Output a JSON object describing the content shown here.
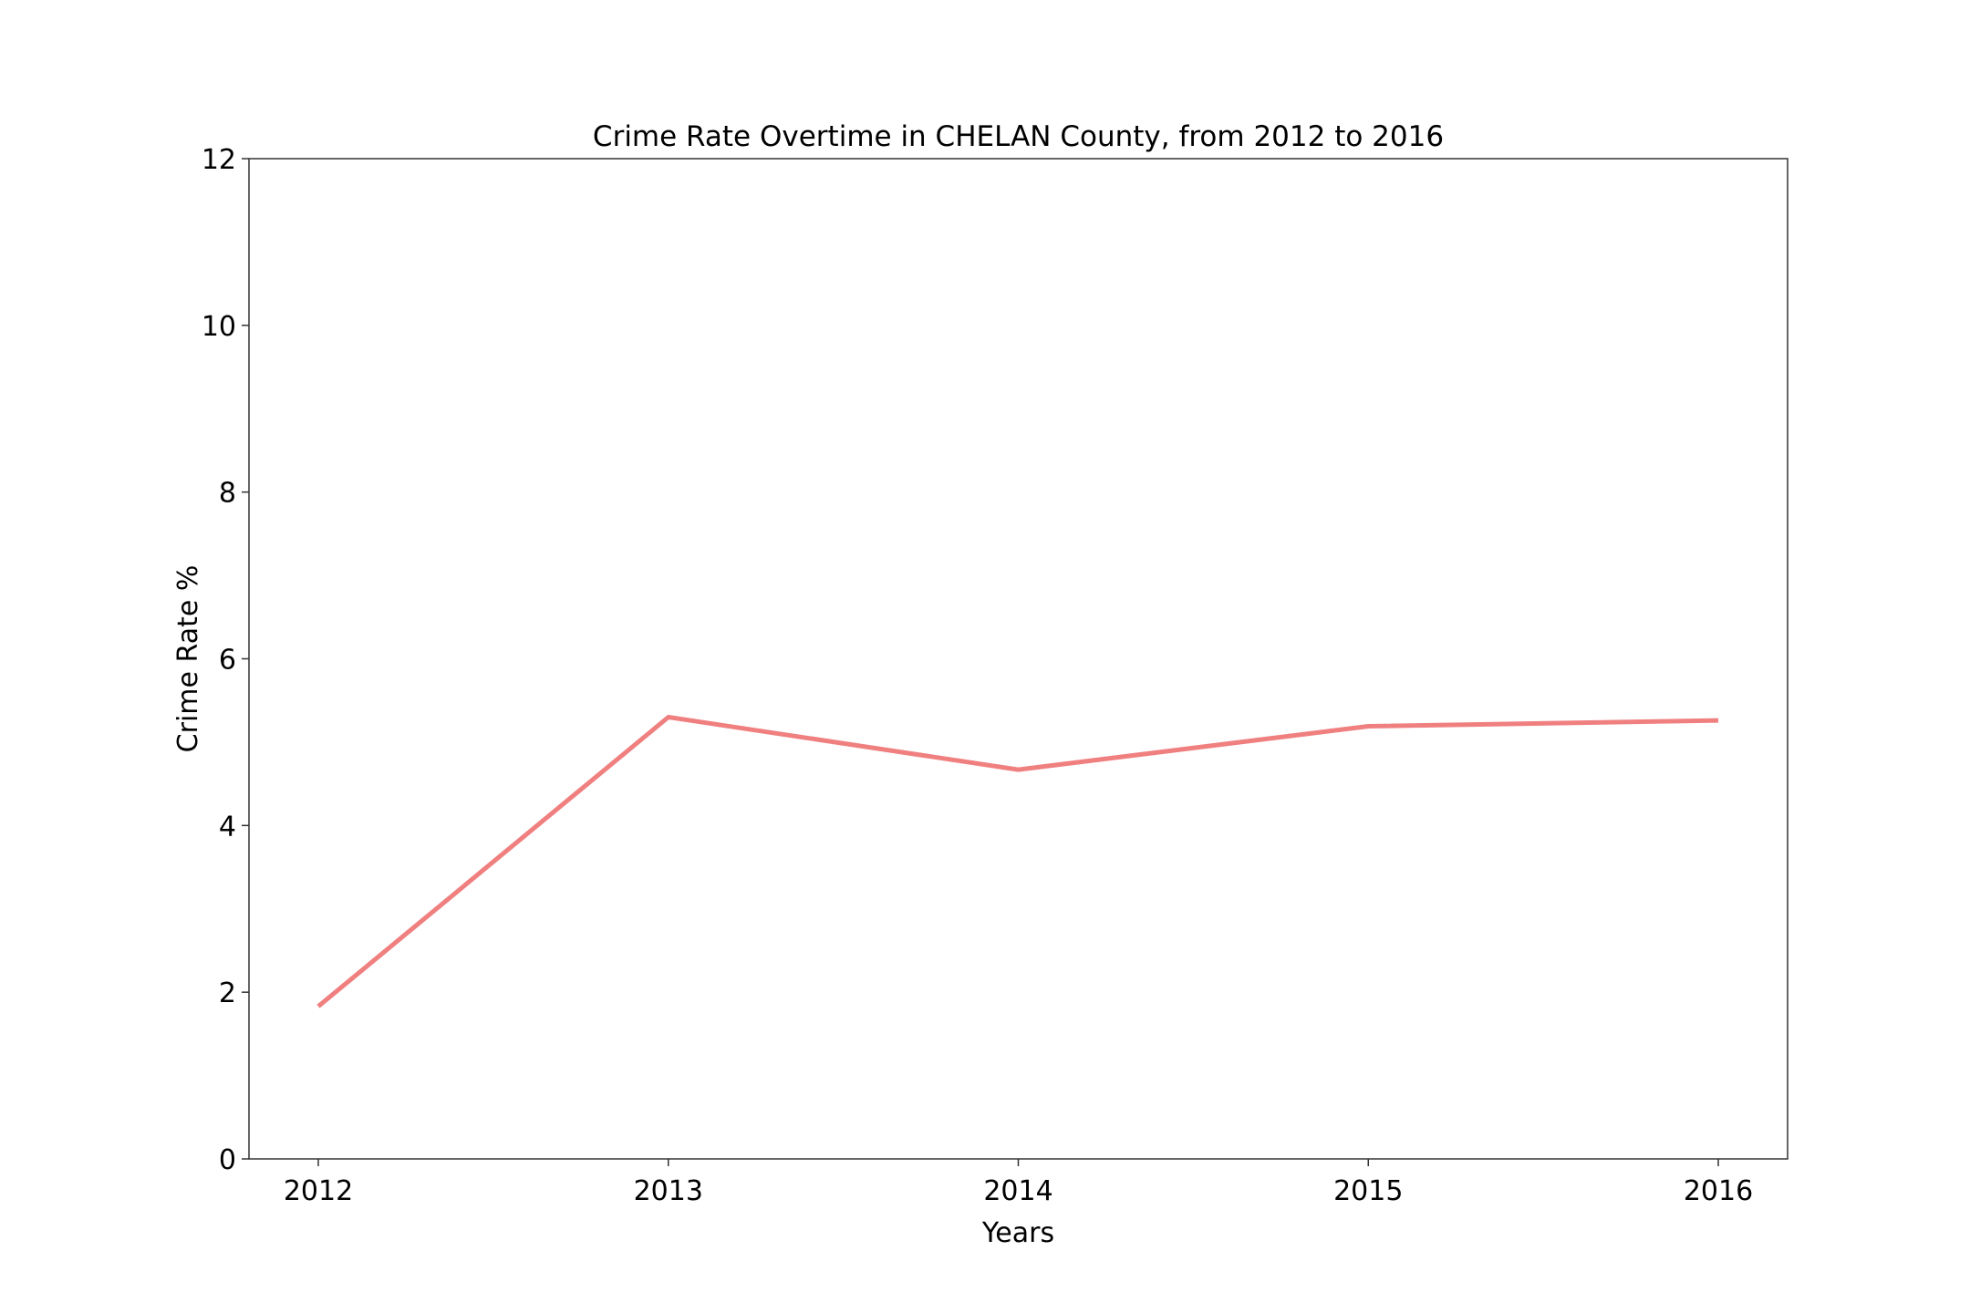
{
  "chart_data": {
    "type": "line",
    "title": "Crime Rate Overtime in CHELAN County, from 2012 to 2016",
    "xlabel": "Years",
    "ylabel": "Crime Rate %",
    "x": [
      "2012",
      "2013",
      "2014",
      "2015",
      "2016"
    ],
    "y_ticks": [
      "0",
      "2",
      "4",
      "6",
      "8",
      "10",
      "12"
    ],
    "ylim": [
      0,
      12
    ],
    "grid": false,
    "series": [
      {
        "values": [
          1.83,
          5.3,
          4.67,
          5.19,
          5.26
        ],
        "color": "#f08080"
      }
    ]
  }
}
